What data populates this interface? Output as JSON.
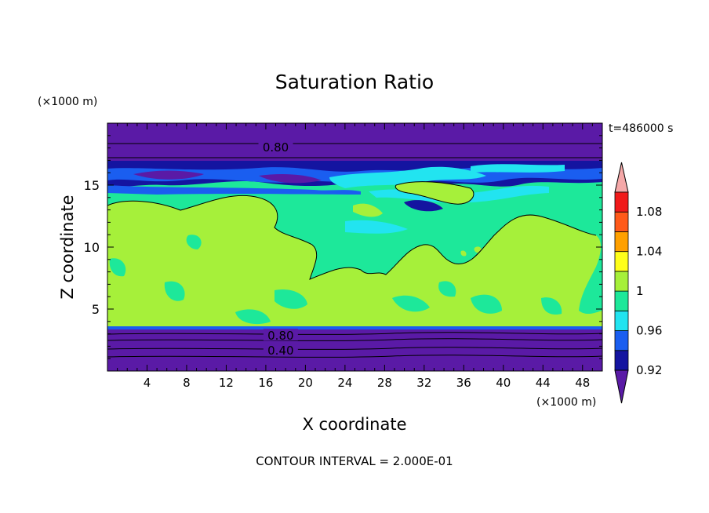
{
  "chart_data": {
    "type": "heatmap",
    "title": "Saturation Ratio",
    "time_label": "t=486000 s",
    "xlabel": "X coordinate",
    "ylabel": "Z coordinate",
    "x_unit": "(×1000 m)",
    "y_unit": "(×1000 m)",
    "xlim": [
      0,
      50
    ],
    "ylim": [
      0,
      20
    ],
    "x_ticks": [
      4,
      8,
      12,
      16,
      20,
      24,
      28,
      32,
      36,
      40,
      44,
      48
    ],
    "y_ticks": [
      5,
      10,
      15
    ],
    "footer": "CONTOUR INTERVAL = 2.000E-01",
    "contour_labels": [
      {
        "text": "0.80",
        "x": 17,
        "z": 18.1
      },
      {
        "text": "0.80",
        "x": 17.5,
        "z": 2.9
      },
      {
        "text": "0.40",
        "x": 17.5,
        "z": 1.7
      }
    ],
    "colorbar": {
      "labels": [
        "1.08",
        "1.04",
        "1",
        "0.96",
        "0.92"
      ],
      "label_values": [
        1.08,
        1.04,
        1.0,
        0.96,
        0.92
      ],
      "levels": [
        0.92,
        0.94,
        0.96,
        0.98,
        1.0,
        1.02,
        1.04,
        1.06,
        1.08,
        1.1
      ],
      "colors": [
        "#5a1aa6",
        "#1414a0",
        "#1a5ef0",
        "#22e4f0",
        "#1de89a",
        "#a6f03a",
        "#ffff1a",
        "#ffa000",
        "#ff5a1a",
        "#f01a1a",
        "#f5a8a8"
      ]
    }
  }
}
